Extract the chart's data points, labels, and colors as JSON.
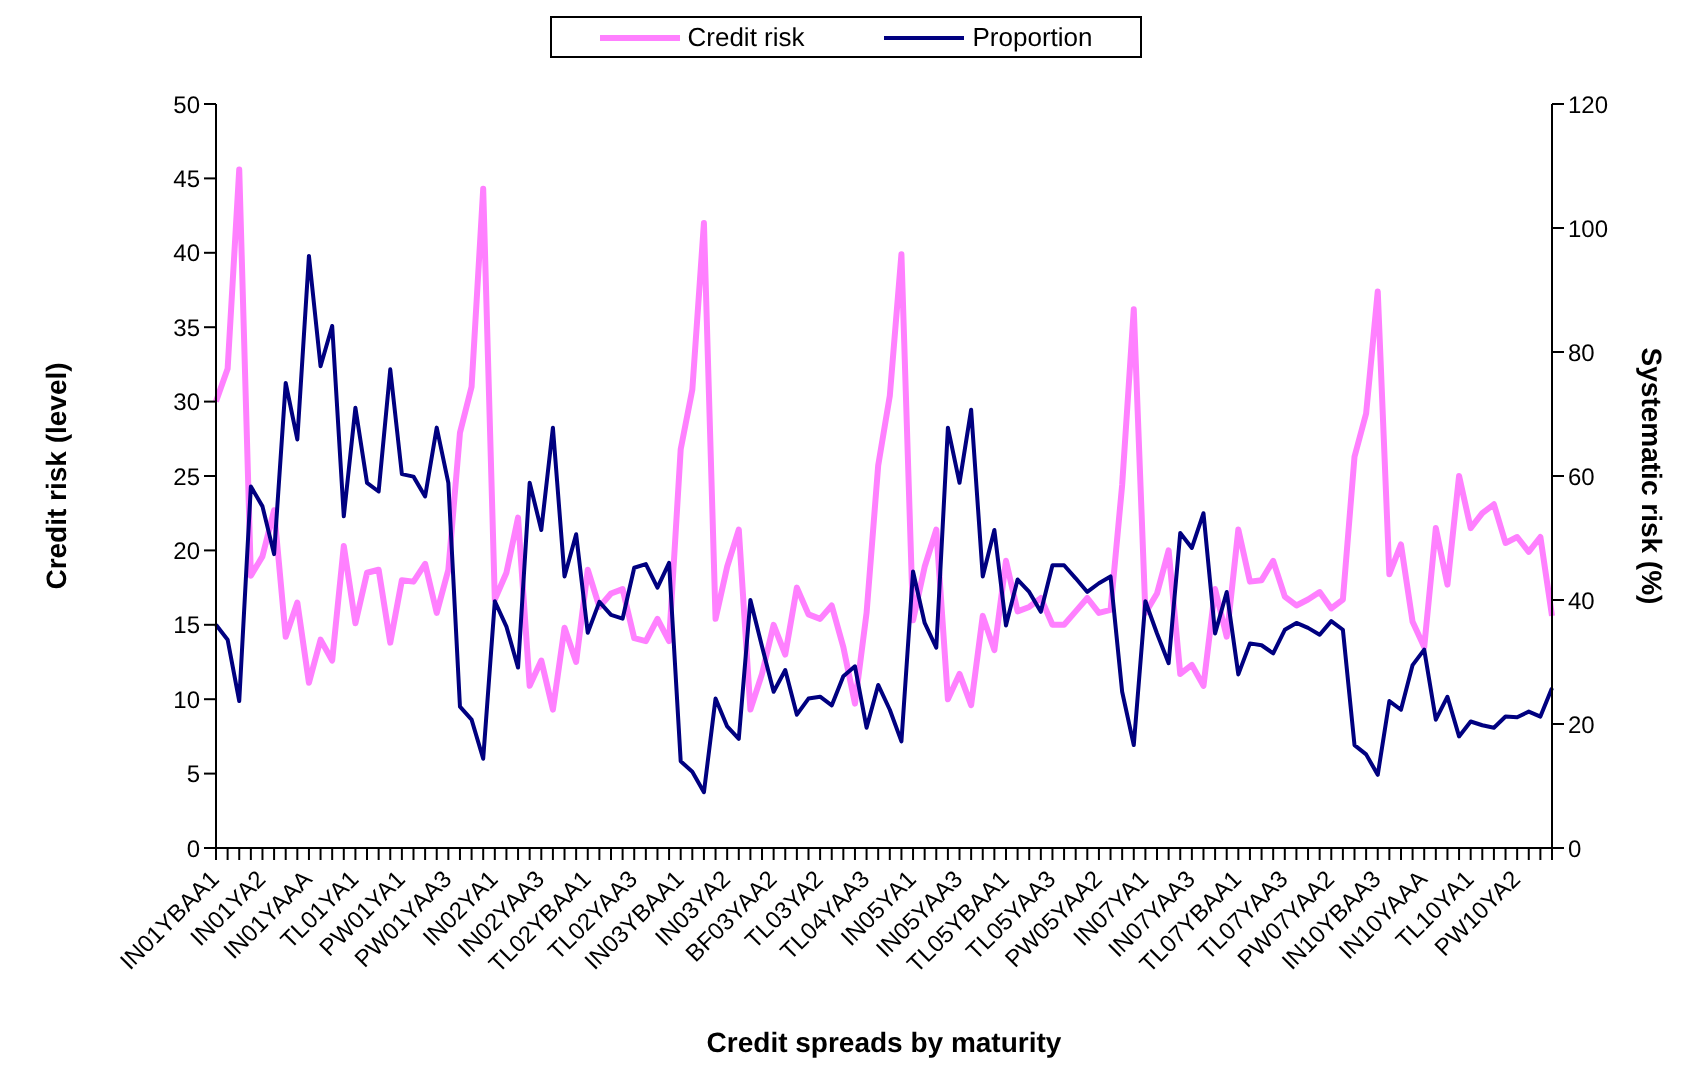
{
  "chart_data": {
    "type": "line",
    "xlabel": "Credit spreads by maturity",
    "ylabel": "Credit risk (level)",
    "y2label": "Systematic risk (%)",
    "categories": [
      "IN01YBAA1",
      null,
      null,
      null,
      "IN01YA2",
      null,
      null,
      null,
      "IN01YAAA",
      null,
      null,
      null,
      "TL01YA1",
      null,
      null,
      null,
      "PW01YA1",
      null,
      null,
      null,
      "PW01YAA3",
      null,
      null,
      null,
      "IN02YA1",
      null,
      null,
      null,
      "IN02YAA3",
      null,
      null,
      null,
      "TL02YBAA1",
      null,
      null,
      null,
      "TL02YAA3",
      null,
      null,
      null,
      "IN03YBAA1",
      null,
      null,
      null,
      "IN03YA2",
      null,
      null,
      null,
      "BF03YAA2",
      null,
      null,
      null,
      "TL03YA2",
      null,
      null,
      null,
      "TL04YAA3",
      null,
      null,
      null,
      "IN05YA1",
      null,
      null,
      null,
      "IN05YAA3",
      null,
      null,
      null,
      "TL05YBAA1",
      null,
      null,
      null,
      "TL05YAA3",
      null,
      null,
      null,
      "PW05YAA2",
      null,
      null,
      null,
      "IN07YA1",
      null,
      null,
      null,
      "IN07YAA3",
      null,
      null,
      null,
      "TL07YBAA1",
      null,
      null,
      null,
      "TL07YAA3",
      null,
      null,
      null,
      "PW07YAA2",
      null,
      null,
      null,
      "IN10YBAA3",
      null,
      null,
      null,
      "IN10YAAA",
      null,
      null,
      null,
      "TL10YA1",
      null,
      null,
      null,
      "PW10YA2",
      null,
      null,
      null
    ],
    "series": [
      {
        "name": "Credit risk",
        "color": "#ff80ff",
        "values": [
          30.0,
          32.2,
          45.6,
          18.3,
          19.6,
          22.7,
          14.2,
          16.5,
          11.1,
          14.0,
          12.6,
          20.3,
          15.1,
          18.5,
          18.7,
          13.8,
          18.0,
          17.9,
          19.1,
          15.8,
          18.7,
          27.9,
          31.0,
          44.3,
          16.7,
          18.5,
          22.2,
          10.9,
          12.6,
          9.3,
          14.8,
          12.5,
          18.7,
          16.2,
          17.1,
          17.4,
          14.1,
          13.9,
          15.4,
          13.9,
          26.8,
          30.8,
          42.0,
          15.4,
          18.9,
          21.4,
          9.3,
          11.7,
          15.0,
          13.0,
          17.5,
          15.7,
          15.4,
          16.3,
          13.5,
          9.7,
          15.8,
          25.7,
          30.4,
          39.9,
          15.3,
          18.9,
          21.4,
          10.0,
          11.7,
          9.6,
          15.6,
          13.3,
          19.3,
          15.9,
          16.2,
          16.8,
          15.0,
          15.0,
          15.9,
          16.8,
          15.8,
          16.0,
          24.4,
          36.2,
          15.8,
          17.1,
          20.0,
          11.7,
          12.3,
          10.9,
          17.4,
          14.2,
          21.4,
          17.9,
          18.0,
          19.3,
          16.9,
          16.3,
          16.7,
          17.2,
          16.1,
          16.7,
          26.3,
          29.2,
          37.4,
          18.4,
          20.4,
          15.2,
          13.5,
          21.5,
          17.7,
          25.0,
          21.5,
          22.5,
          23.1,
          20.5,
          20.9,
          19.9,
          20.9,
          15.6
        ]
      },
      {
        "name": "Proportion",
        "color": "#000080",
        "axis": "y2",
        "values": [
          36.0,
          33.6,
          23.7,
          58.3,
          55.1,
          47.4,
          75.0,
          65.9,
          95.5,
          77.7,
          84.2,
          53.5,
          71.0,
          58.9,
          57.5,
          77.2,
          60.3,
          59.9,
          56.7,
          67.8,
          58.9,
          22.8,
          20.7,
          14.4,
          39.8,
          35.7,
          29.1,
          58.9,
          51.3,
          67.8,
          43.8,
          50.6,
          34.7,
          39.7,
          37.6,
          37.0,
          45.2,
          45.8,
          42.0,
          46.0,
          14.0,
          12.3,
          9.0,
          24.1,
          19.6,
          17.6,
          40.0,
          32.5,
          25.2,
          28.7,
          21.5,
          24.1,
          24.4,
          23.0,
          27.7,
          29.3,
          19.4,
          26.3,
          22.3,
          17.2,
          44.6,
          36.3,
          32.3,
          67.8,
          58.9,
          70.7,
          43.8,
          51.3,
          35.9,
          43.3,
          41.3,
          38.1,
          45.6,
          45.6,
          43.5,
          41.3,
          42.7,
          43.8,
          25.2,
          16.6,
          39.8,
          34.6,
          29.8,
          50.8,
          48.4,
          54.0,
          34.6,
          41.3,
          28.0,
          33.0,
          32.7,
          31.4,
          35.2,
          36.3,
          35.5,
          34.4,
          36.6,
          35.2,
          16.6,
          15.1,
          11.8,
          23.7,
          22.3,
          29.5,
          32.0,
          20.7,
          24.4,
          18.0,
          20.4,
          19.8,
          19.4,
          21.2,
          21.1,
          22.0,
          21.2,
          25.8
        ]
      }
    ],
    "ylim": [
      0,
      50
    ],
    "yticks": [
      0,
      5,
      10,
      15,
      20,
      25,
      30,
      35,
      40,
      45,
      50
    ],
    "y2lim": [
      0,
      120
    ],
    "y2ticks": [
      0,
      20,
      40,
      60,
      80,
      100,
      120
    ],
    "legend": "top"
  }
}
